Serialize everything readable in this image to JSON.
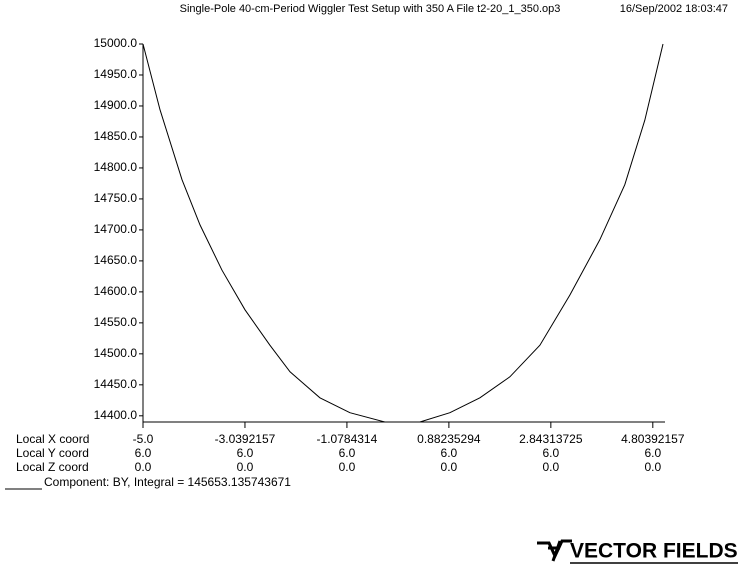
{
  "chart_data": {
    "type": "line",
    "title": "Single-Pole 40-cm-Period Wiggler Test Setup with 350 A  File t2-20_1_350.op3",
    "timestamp": "16/Sep/2002 18:03:47",
    "color": "#000000",
    "x": [
      -5.0,
      -4.673,
      -4.25,
      -3.904,
      -3.481,
      -3.039,
      -2.559,
      -2.174,
      -1.598,
      -1.021,
      -0.348,
      0.325,
      0.902,
      1.479,
      2.055,
      2.632,
      3.209,
      3.785,
      4.266,
      4.65,
      5.0
    ],
    "values": [
      15000,
      14894,
      14781,
      14708,
      14635,
      14571,
      14514,
      14471,
      14429,
      14405,
      14390,
      14390,
      14405,
      14429,
      14463,
      14514,
      14595,
      14684,
      14773,
      14877,
      15000
    ],
    "xlim": [
      -5.0,
      5.0
    ],
    "ylim": [
      14390,
      15000
    ],
    "xticks": [
      {
        "value": -5.0,
        "label": "-5.0"
      },
      {
        "value": -3.0392157,
        "label": "-3.0392157"
      },
      {
        "value": -1.0784314,
        "label": "-1.0784314"
      },
      {
        "value": 0.88235294,
        "label": "0.88235294"
      },
      {
        "value": 2.84313725,
        "label": "2.84313725"
      },
      {
        "value": 4.80392157,
        "label": "4.80392157"
      }
    ],
    "yticks": [
      {
        "value": 15000,
        "label": "15000.0"
      },
      {
        "value": 14950,
        "label": "14950.0"
      },
      {
        "value": 14900,
        "label": "14900.0"
      },
      {
        "value": 14850,
        "label": "14850.0"
      },
      {
        "value": 14800,
        "label": "14800.0"
      },
      {
        "value": 14750,
        "label": "14750.0"
      },
      {
        "value": 14700,
        "label": "14700.0"
      },
      {
        "value": 14650,
        "label": "14650.0"
      },
      {
        "value": 14600,
        "label": "14600.0"
      },
      {
        "value": 14550,
        "label": "14550.0"
      },
      {
        "value": 14500,
        "label": "14500.0"
      },
      {
        "value": 14450,
        "label": "14450.0"
      },
      {
        "value": 14400,
        "label": "14400.0"
      }
    ]
  },
  "table": {
    "row_labels": [
      "Local X coord",
      "Local Y coord",
      "Local Z coord"
    ],
    "y_row": [
      "6.0",
      "6.0",
      "6.0",
      "6.0",
      "6.0",
      "6.0"
    ],
    "z_row": [
      "0.0",
      "0.0",
      "0.0",
      "0.0",
      "0.0",
      "0.0"
    ]
  },
  "component": "Component:   BY, Integral = 145653.135743671",
  "logo": "VECTOR FIELDS"
}
